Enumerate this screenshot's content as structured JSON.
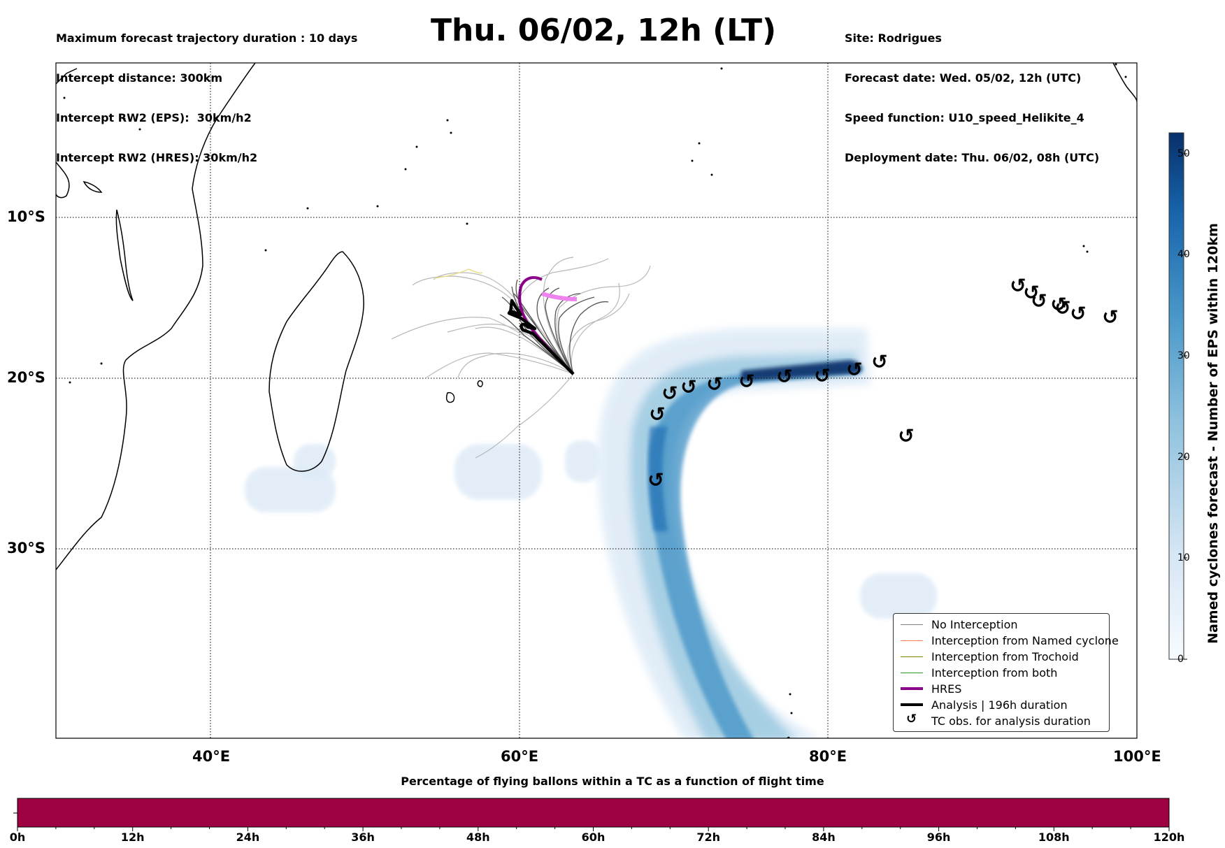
{
  "header": {
    "left_lines": [
      "Maximum forecast trajectory duration : 10 days",
      "Intercept distance: 300km",
      "Intercept RW2 (EPS):  30km/h2",
      "Intercept RW2 (HRES): 30km/h2"
    ],
    "title": "Thu. 06/02, 12h (LT)",
    "right_lines": [
      "Site: Rodrigues",
      "Forecast date: Wed. 05/02, 12h (UTC)",
      "Speed function: U10_speed_Helikite_4",
      "Deployment date: Thu. 06/02, 08h (UTC)"
    ]
  },
  "map": {
    "lat_labels": [
      "10°S",
      "20°S",
      "30°S"
    ],
    "lon_labels": [
      "40°E",
      "60°E",
      "80°E",
      "100°E"
    ],
    "lon_range": [
      30,
      100
    ],
    "lat_range": [
      -42,
      0
    ],
    "tc_symbol": "↺",
    "colors": {
      "no_interception": "#7f7f7f",
      "named_cyclone": "#ff7f50",
      "trochoid": "#808000",
      "both": "#2ca02c",
      "hres": "#8b008b",
      "analysis": "#000000",
      "cyclone_fill": "#08306b"
    }
  },
  "legend": {
    "items": [
      {
        "label": "No Interception",
        "style": "thin",
        "color": "#7f7f7f"
      },
      {
        "label": "Interception from Named cyclone",
        "style": "thin",
        "color": "#ff7f50"
      },
      {
        "label": "Interception from Trochoid",
        "style": "thin",
        "color": "#808000"
      },
      {
        "label": "Interception from both",
        "style": "thin",
        "color": "#2ca02c"
      },
      {
        "label": "HRES",
        "style": "thick",
        "color": "#8b008b"
      },
      {
        "label": "Analysis | 196h duration",
        "style": "thick",
        "color": "#000000"
      },
      {
        "label": "TC obs. for analysis duration",
        "style": "marker",
        "color": "#000000"
      }
    ]
  },
  "colorbar_vertical": {
    "label": "Named cyclones forecast - Number of EPS within 120km",
    "ticks": [
      "0",
      "10",
      "20",
      "30",
      "40",
      "50"
    ],
    "range": [
      0,
      52
    ]
  },
  "colorbar_horizontal": {
    "title": "Percentage of flying ballons within a TC as a function of flight time",
    "ticks": [
      "0h",
      "12h",
      "24h",
      "36h",
      "48h",
      "60h",
      "72h",
      "84h",
      "96h",
      "108h",
      "120h"
    ],
    "fill_color": "#9e0142"
  }
}
